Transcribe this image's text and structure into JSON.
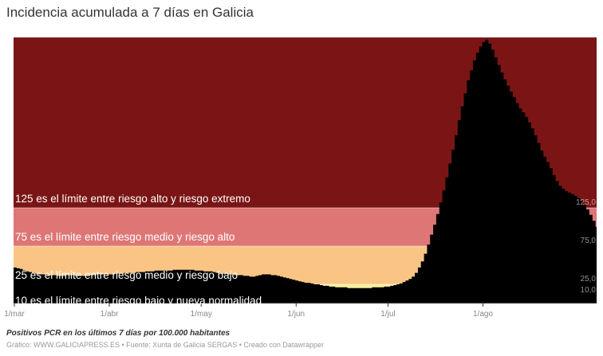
{
  "title": "Incidencia acumulada a 7 días en Galicia",
  "notes": "Positivos PCR en los últimos 7 días por 100.000 habitantes",
  "footer": "Gráfico: WWW.GALICIAPRESS.ES • Fuente: Xunta de Galicia SERGAS • Creado con Datawrapper",
  "bands": [
    {
      "from": 0,
      "to": 10,
      "color": "#9ff6ee",
      "label": "",
      "value_label": ""
    },
    {
      "from": 10,
      "to": 25,
      "color": "#f8f09a",
      "label": "10 es el límite entre riesgo bajo y nueva normalidad",
      "value_label": "10,0"
    },
    {
      "from": 25,
      "to": 75,
      "color": "#fac584",
      "label": "25 es el límite entre riesgo medio y riesgo bajo",
      "value_label": "25,0"
    },
    {
      "from": 75,
      "to": 125,
      "color": "#de7676",
      "label": "75 es el límite entre riesgo medio y riesgo alto",
      "value_label": "75,0"
    },
    {
      "from": 125,
      "to": 348,
      "color": "#7b1515",
      "label": "125 es el límite entre riesgo alto y riesgo extremo",
      "value_label": "125,0"
    }
  ],
  "chart_data": {
    "type": "area",
    "title": "Incidencia acumulada a 7 días en Galicia",
    "xlabel": "",
    "ylabel": "Positivos PCR en los últimos 7 días por 100.000 habitantes",
    "ylim": [
      0,
      348
    ],
    "x_start": "1/mar",
    "x_end": "31/ago",
    "x_ticks": [
      "1/mar",
      "1/abr",
      "1/may",
      "1/jun",
      "1/jul",
      "1/ago"
    ],
    "x_tick_days": [
      0,
      31,
      61,
      92,
      122,
      153
    ],
    "thresholds": [
      10,
      25,
      75,
      125
    ],
    "grid": false,
    "legend": "none",
    "series": [
      {
        "name": "Incidencia acumulada 7 días",
        "color": "#000000",
        "values": [
          47,
          46,
          45,
          43,
          42,
          41,
          40,
          39,
          38,
          38,
          38,
          37,
          37,
          37,
          36,
          36,
          36,
          37,
          37,
          37,
          36,
          36,
          36,
          36,
          37,
          37,
          37,
          38,
          38,
          38,
          38,
          38,
          38,
          39,
          39,
          39,
          40,
          40,
          40,
          40,
          41,
          41,
          41,
          42,
          42,
          42,
          43,
          43,
          43,
          43,
          43,
          43,
          44,
          44,
          44,
          44,
          44,
          44,
          44,
          43,
          43,
          43,
          42,
          42,
          42,
          41,
          40,
          40,
          39,
          39,
          38,
          38,
          37,
          37,
          37,
          36,
          36,
          35,
          35,
          36,
          37,
          38,
          38,
          38,
          37,
          37,
          36,
          35,
          34,
          33,
          32,
          31,
          30,
          29,
          28,
          27,
          27,
          26,
          25,
          25,
          24,
          23,
          23,
          22,
          22,
          21,
          21,
          21,
          21,
          20,
          20,
          20,
          20,
          20,
          20,
          20,
          20,
          21,
          21,
          21,
          21,
          22,
          22,
          23,
          24,
          25,
          26,
          28,
          30,
          32,
          35,
          40,
          47,
          55,
          65,
          77,
          90,
          103,
          117,
          132,
          148,
          165,
          183,
          201,
          220,
          240,
          258,
          275,
          292,
          305,
          318,
          328,
          336,
          342,
          345,
          340,
          332,
          322,
          312,
          302,
          293,
          285,
          277,
          270,
          262,
          255,
          250,
          244,
          237,
          229,
          220,
          210,
          200,
          192,
          185,
          177,
          168,
          160,
          154,
          150,
          147,
          145,
          143,
          141,
          138,
          134,
          129,
          123,
          116,
          108,
          100
        ]
      }
    ]
  }
}
